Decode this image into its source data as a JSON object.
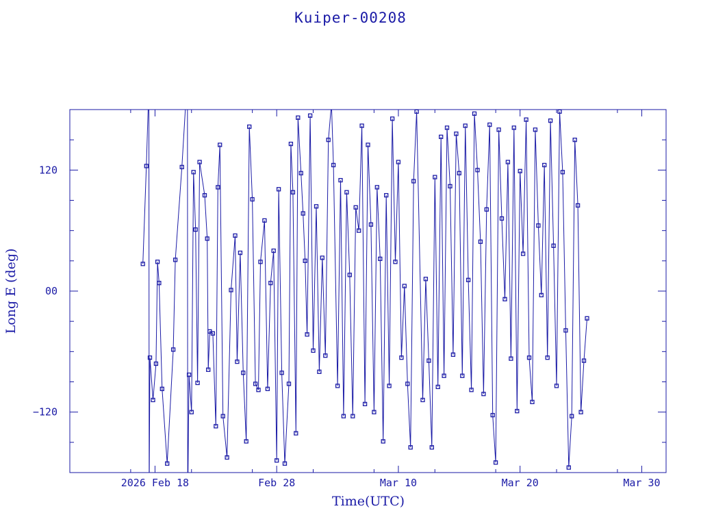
{
  "chart_data": {
    "type": "scatter",
    "title": "Kuiper-00208",
    "xlabel": "Time(UTC)",
    "ylabel": "Long E (deg)",
    "color": "#1a1aa6",
    "xlim": [
      "2026-02-11",
      "2026-04-01"
    ],
    "ylim": [
      -180,
      180
    ],
    "x_ticks": [
      {
        "date": "2026-02-18",
        "label": "2026 Feb 18"
      },
      {
        "date": "2026-02-28",
        "label": "Feb 28"
      },
      {
        "date": "2026-03-10",
        "label": "Mar 10"
      },
      {
        "date": "2026-03-20",
        "label": "Mar 20"
      },
      {
        "date": "2026-03-30",
        "label": "Mar 30"
      }
    ],
    "y_ticks": [
      {
        "value": 120,
        "label": "120"
      },
      {
        "value": 0,
        "label": "00"
      },
      {
        "value": -120,
        "label": "−120"
      }
    ],
    "series": [
      {
        "points": [
          [
            "2026-02-17T00:00",
            27
          ],
          [
            "2026-02-17T07:00",
            124
          ],
          [
            "2026-02-17T12:00",
            205
          ],
          [
            "2026-02-17T12:30",
            -205
          ],
          [
            "2026-02-17T14:00",
            -66
          ],
          [
            "2026-02-17T20:00",
            -108
          ],
          [
            "2026-02-18T02:00",
            -72
          ],
          [
            "2026-02-18T05:00",
            29
          ],
          [
            "2026-02-18T08:00",
            8
          ],
          [
            "2026-02-18T14:00",
            -97
          ],
          [
            "2026-02-19T00:00",
            -171
          ],
          [
            "2026-02-19T12:00",
            -58
          ],
          [
            "2026-02-19T16:00",
            31
          ],
          [
            "2026-02-20T05:00",
            123
          ],
          [
            "2026-02-20T16:00",
            215
          ],
          [
            "2026-02-20T16:30",
            -215
          ],
          [
            "2026-02-20T19:00",
            -83
          ],
          [
            "2026-02-21T00:00",
            -120
          ],
          [
            "2026-02-21T04:00",
            118
          ],
          [
            "2026-02-21T08:00",
            61
          ],
          [
            "2026-02-21T12:00",
            -91
          ],
          [
            "2026-02-21T16:00",
            128
          ],
          [
            "2026-02-22T02:00",
            95
          ],
          [
            "2026-02-22T07:00",
            52
          ],
          [
            "2026-02-22T09:00",
            -78
          ],
          [
            "2026-02-22T12:00",
            -40
          ],
          [
            "2026-02-22T18:00",
            -42
          ],
          [
            "2026-02-23T00:00",
            -134
          ],
          [
            "2026-02-23T04:00",
            103
          ],
          [
            "2026-02-23T08:00",
            145
          ],
          [
            "2026-02-23T14:00",
            -124
          ],
          [
            "2026-02-23T22:00",
            -165
          ],
          [
            "2026-02-24T06:00",
            1
          ],
          [
            "2026-02-24T14:00",
            55
          ],
          [
            "2026-02-24T18:00",
            -70
          ],
          [
            "2026-02-25T00:00",
            38
          ],
          [
            "2026-02-25T06:00",
            -81
          ],
          [
            "2026-02-25T12:00",
            -149
          ],
          [
            "2026-02-25T18:00",
            163
          ],
          [
            "2026-02-26T00:00",
            91
          ],
          [
            "2026-02-26T06:00",
            -92
          ],
          [
            "2026-02-26T12:00",
            -98
          ],
          [
            "2026-02-26T16:00",
            29
          ],
          [
            "2026-02-27T00:00",
            70
          ],
          [
            "2026-02-27T06:00",
            -97
          ],
          [
            "2026-02-27T12:00",
            8
          ],
          [
            "2026-02-27T18:00",
            40
          ],
          [
            "2026-02-28T00:00",
            -168
          ],
          [
            "2026-02-28T04:00",
            101
          ],
          [
            "2026-02-28T10:00",
            -81
          ],
          [
            "2026-02-28T16:00",
            -171
          ],
          [
            "2026-03-01T00:00",
            -92
          ],
          [
            "2026-03-01T04:00",
            146
          ],
          [
            "2026-03-01T08:00",
            98
          ],
          [
            "2026-03-01T14:00",
            -141
          ],
          [
            "2026-03-01T18:00",
            172
          ],
          [
            "2026-03-02T00:00",
            117
          ],
          [
            "2026-03-02T04:00",
            77
          ],
          [
            "2026-03-02T08:00",
            30
          ],
          [
            "2026-03-02T12:00",
            -43
          ],
          [
            "2026-03-02T18:00",
            174
          ],
          [
            "2026-03-03T00:00",
            -59
          ],
          [
            "2026-03-03T06:00",
            84
          ],
          [
            "2026-03-03T12:00",
            -80
          ],
          [
            "2026-03-03T18:00",
            33
          ],
          [
            "2026-03-04T00:00",
            -64
          ],
          [
            "2026-03-04T06:00",
            150
          ],
          [
            "2026-03-04T12:00",
            186
          ],
          [
            "2026-03-04T16:00",
            125
          ],
          [
            "2026-03-05T00:00",
            -94
          ],
          [
            "2026-03-05T06:00",
            110
          ],
          [
            "2026-03-05T12:00",
            -124
          ],
          [
            "2026-03-05T18:00",
            98
          ],
          [
            "2026-03-06T00:00",
            16
          ],
          [
            "2026-03-06T06:00",
            -124
          ],
          [
            "2026-03-06T12:00",
            83
          ],
          [
            "2026-03-06T18:00",
            60
          ],
          [
            "2026-03-07T00:00",
            164
          ],
          [
            "2026-03-07T06:00",
            -112
          ],
          [
            "2026-03-07T12:00",
            145
          ],
          [
            "2026-03-07T18:00",
            66
          ],
          [
            "2026-03-08T00:00",
            -120
          ],
          [
            "2026-03-08T06:00",
            103
          ],
          [
            "2026-03-08T12:00",
            32
          ],
          [
            "2026-03-08T18:00",
            -149
          ],
          [
            "2026-03-09T00:00",
            95
          ],
          [
            "2026-03-09T06:00",
            -94
          ],
          [
            "2026-03-09T12:00",
            171
          ],
          [
            "2026-03-09T18:00",
            29
          ],
          [
            "2026-03-10T00:00",
            128
          ],
          [
            "2026-03-10T06:00",
            -66
          ],
          [
            "2026-03-10T12:00",
            5
          ],
          [
            "2026-03-10T18:00",
            -92
          ],
          [
            "2026-03-11T00:00",
            -155
          ],
          [
            "2026-03-11T06:00",
            109
          ],
          [
            "2026-03-11T12:00",
            178
          ],
          [
            "2026-03-12T00:00",
            -108
          ],
          [
            "2026-03-12T06:00",
            12
          ],
          [
            "2026-03-12T12:00",
            -69
          ],
          [
            "2026-03-12T18:00",
            -155
          ],
          [
            "2026-03-13T00:00",
            113
          ],
          [
            "2026-03-13T06:00",
            -95
          ],
          [
            "2026-03-13T12:00",
            153
          ],
          [
            "2026-03-13T18:00",
            -84
          ],
          [
            "2026-03-14T00:00",
            162
          ],
          [
            "2026-03-14T06:00",
            104
          ],
          [
            "2026-03-14T12:00",
            -63
          ],
          [
            "2026-03-14T18:00",
            156
          ],
          [
            "2026-03-15T00:00",
            117
          ],
          [
            "2026-03-15T06:00",
            -84
          ],
          [
            "2026-03-15T12:00",
            164
          ],
          [
            "2026-03-15T18:00",
            11
          ],
          [
            "2026-03-16T00:00",
            -98
          ],
          [
            "2026-03-16T06:00",
            176
          ],
          [
            "2026-03-16T12:00",
            120
          ],
          [
            "2026-03-16T18:00",
            49
          ],
          [
            "2026-03-17T00:00",
            -102
          ],
          [
            "2026-03-17T06:00",
            81
          ],
          [
            "2026-03-17T12:00",
            165
          ],
          [
            "2026-03-17T18:00",
            -123
          ],
          [
            "2026-03-18T00:00",
            -170
          ],
          [
            "2026-03-18T06:00",
            160
          ],
          [
            "2026-03-18T12:00",
            72
          ],
          [
            "2026-03-18T18:00",
            -8
          ],
          [
            "2026-03-19T00:00",
            128
          ],
          [
            "2026-03-19T06:00",
            -67
          ],
          [
            "2026-03-19T12:00",
            162
          ],
          [
            "2026-03-19T18:00",
            -119
          ],
          [
            "2026-03-20T00:00",
            119
          ],
          [
            "2026-03-20T06:00",
            37
          ],
          [
            "2026-03-20T12:00",
            170
          ],
          [
            "2026-03-20T18:00",
            -66
          ],
          [
            "2026-03-21T00:00",
            -110
          ],
          [
            "2026-03-21T06:00",
            160
          ],
          [
            "2026-03-21T12:00",
            65
          ],
          [
            "2026-03-21T18:00",
            -4
          ],
          [
            "2026-03-22T00:00",
            125
          ],
          [
            "2026-03-22T06:00",
            -66
          ],
          [
            "2026-03-22T12:00",
            169
          ],
          [
            "2026-03-22T18:00",
            45
          ],
          [
            "2026-03-23T00:00",
            -94
          ],
          [
            "2026-03-23T06:00",
            178
          ],
          [
            "2026-03-23T12:00",
            118
          ],
          [
            "2026-03-23T18:00",
            -39
          ],
          [
            "2026-03-24T00:00",
            -175
          ],
          [
            "2026-03-24T06:00",
            -124
          ],
          [
            "2026-03-24T12:00",
            150
          ],
          [
            "2026-03-24T18:00",
            85
          ],
          [
            "2026-03-25T00:00",
            -120
          ],
          [
            "2026-03-25T06:00",
            -69
          ],
          [
            "2026-03-25T12:00",
            -27
          ]
        ]
      }
    ]
  }
}
